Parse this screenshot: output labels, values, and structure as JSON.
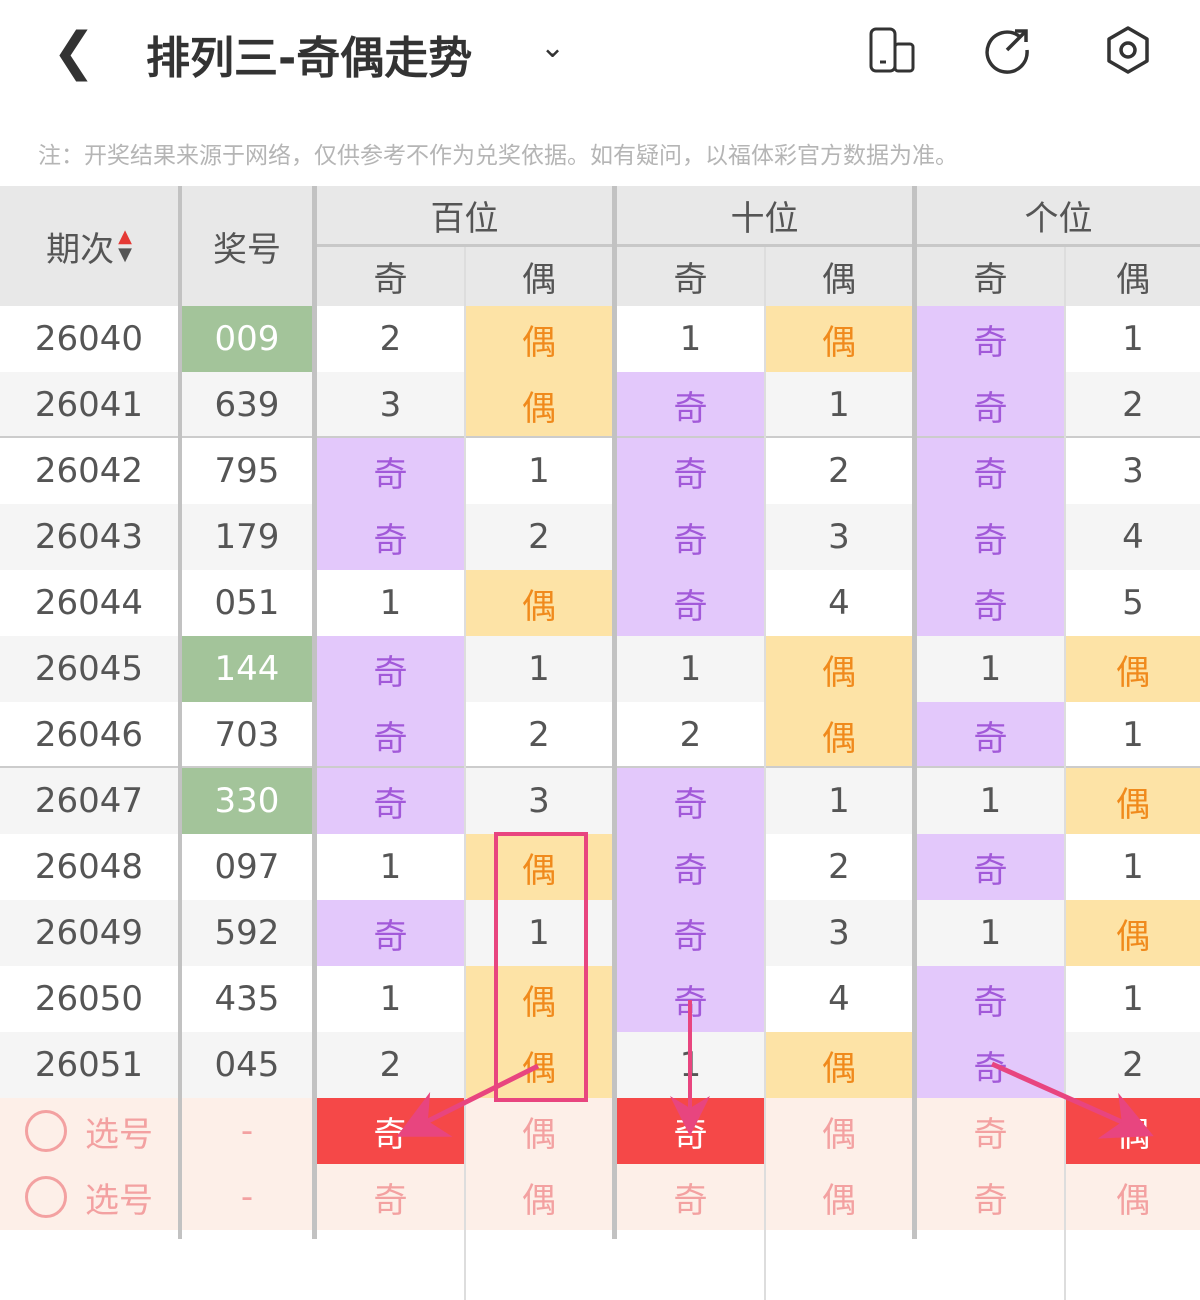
{
  "header": {
    "title": "排列三-奇偶走势",
    "back_icon": "chevron-left-icon",
    "dropdown_icon": "chevron-down-icon",
    "icons": [
      "phone-layout-icon",
      "share-icon",
      "settings-icon"
    ]
  },
  "note": "注：开奖结果来源于网络，仅供参考不作为兑奖依据。如有疑问，以福体彩官方数据为准。",
  "table": {
    "col_issue": "期次",
    "col_number": "奖号",
    "groups": [
      "百位",
      "十位",
      "个位"
    ],
    "sub": [
      "奇",
      "偶"
    ],
    "rows": [
      {
        "issue": "26040",
        "number": "009",
        "green": true,
        "cells": [
          "2",
          "偶",
          "1",
          "偶",
          "奇",
          "1"
        ]
      },
      {
        "issue": "26041",
        "number": "639",
        "green": false,
        "cells": [
          "3",
          "偶",
          "奇",
          "1",
          "奇",
          "2"
        ]
      },
      {
        "issue": "26042",
        "number": "795",
        "green": false,
        "cells": [
          "奇",
          "1",
          "奇",
          "2",
          "奇",
          "3"
        ]
      },
      {
        "issue": "26043",
        "number": "179",
        "green": false,
        "cells": [
          "奇",
          "2",
          "奇",
          "3",
          "奇",
          "4"
        ]
      },
      {
        "issue": "26044",
        "number": "051",
        "green": false,
        "cells": [
          "1",
          "偶",
          "奇",
          "4",
          "奇",
          "5"
        ]
      },
      {
        "issue": "26045",
        "number": "144",
        "green": true,
        "cells": [
          "奇",
          "1",
          "1",
          "偶",
          "1",
          "偶"
        ]
      },
      {
        "issue": "26046",
        "number": "703",
        "green": false,
        "cells": [
          "奇",
          "2",
          "2",
          "偶",
          "奇",
          "1"
        ]
      },
      {
        "issue": "26047",
        "number": "330",
        "green": true,
        "cells": [
          "奇",
          "3",
          "奇",
          "1",
          "1",
          "偶"
        ]
      },
      {
        "issue": "26048",
        "number": "097",
        "green": false,
        "cells": [
          "1",
          "偶",
          "奇",
          "2",
          "奇",
          "1"
        ]
      },
      {
        "issue": "26049",
        "number": "592",
        "green": false,
        "cells": [
          "奇",
          "1",
          "奇",
          "3",
          "1",
          "偶"
        ]
      },
      {
        "issue": "26050",
        "number": "435",
        "green": false,
        "cells": [
          "1",
          "偶",
          "奇",
          "4",
          "奇",
          "1"
        ]
      },
      {
        "issue": "26051",
        "number": "045",
        "green": false,
        "cells": [
          "2",
          "偶",
          "1",
          "偶",
          "奇",
          "2"
        ]
      }
    ],
    "select_rows": [
      {
        "label": "选号",
        "number": "-",
        "cells": [
          "奇",
          "偶",
          "奇",
          "偶",
          "奇",
          "偶"
        ],
        "selected": [
          0,
          2,
          5
        ]
      },
      {
        "label": "选号",
        "number": "-",
        "cells": [
          "奇",
          "偶",
          "奇",
          "偶",
          "奇",
          "偶"
        ],
        "selected": []
      }
    ]
  },
  "colors": {
    "odd_bg": "#e3c8fb",
    "even_bg": "#fde3a6",
    "green_bg": "#a3c49a",
    "selected_bg": "#f54848",
    "annotation": "#e8457f",
    "sort_arrow": "#e53935"
  }
}
